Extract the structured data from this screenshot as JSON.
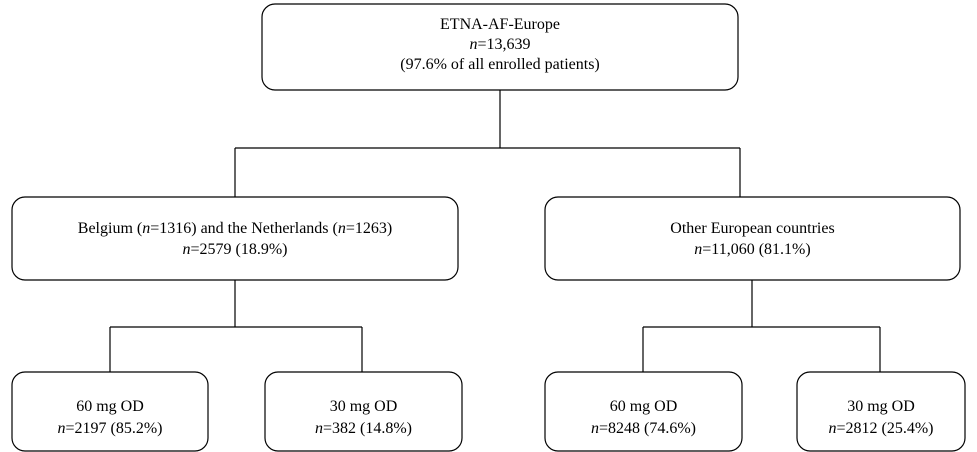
{
  "nodes": [
    {
      "lines": [
        [
          "ETNA-AF-Europe"
        ],
        [
          "",
          "n",
          "=13,639"
        ],
        [
          "(97.6% of all enrolled patients)"
        ]
      ]
    },
    {
      "lines": [
        [
          "Belgium (",
          "n",
          "=1316) and the Netherlands (",
          "n",
          "=1263)"
        ],
        [
          "",
          "n",
          "=2579 (18.9%)"
        ]
      ]
    },
    {
      "lines": [
        [
          "Other European countries"
        ],
        [
          "",
          "n",
          "=11,060 (81.1%)"
        ]
      ]
    },
    {
      "lines": [
        [
          "60 mg OD"
        ],
        [
          "",
          "n",
          "=2197 (85.2%)"
        ]
      ]
    },
    {
      "lines": [
        [
          "30 mg OD"
        ],
        [
          "",
          "n",
          "=382 (14.8%)"
        ]
      ]
    },
    {
      "lines": [
        [
          "60 mg OD"
        ],
        [
          "",
          "n",
          "=8248 (74.6%)"
        ]
      ]
    },
    {
      "lines": [
        [
          "30 mg OD"
        ],
        [
          "",
          "n",
          "=2812 (25.4%)"
        ]
      ]
    }
  ]
}
